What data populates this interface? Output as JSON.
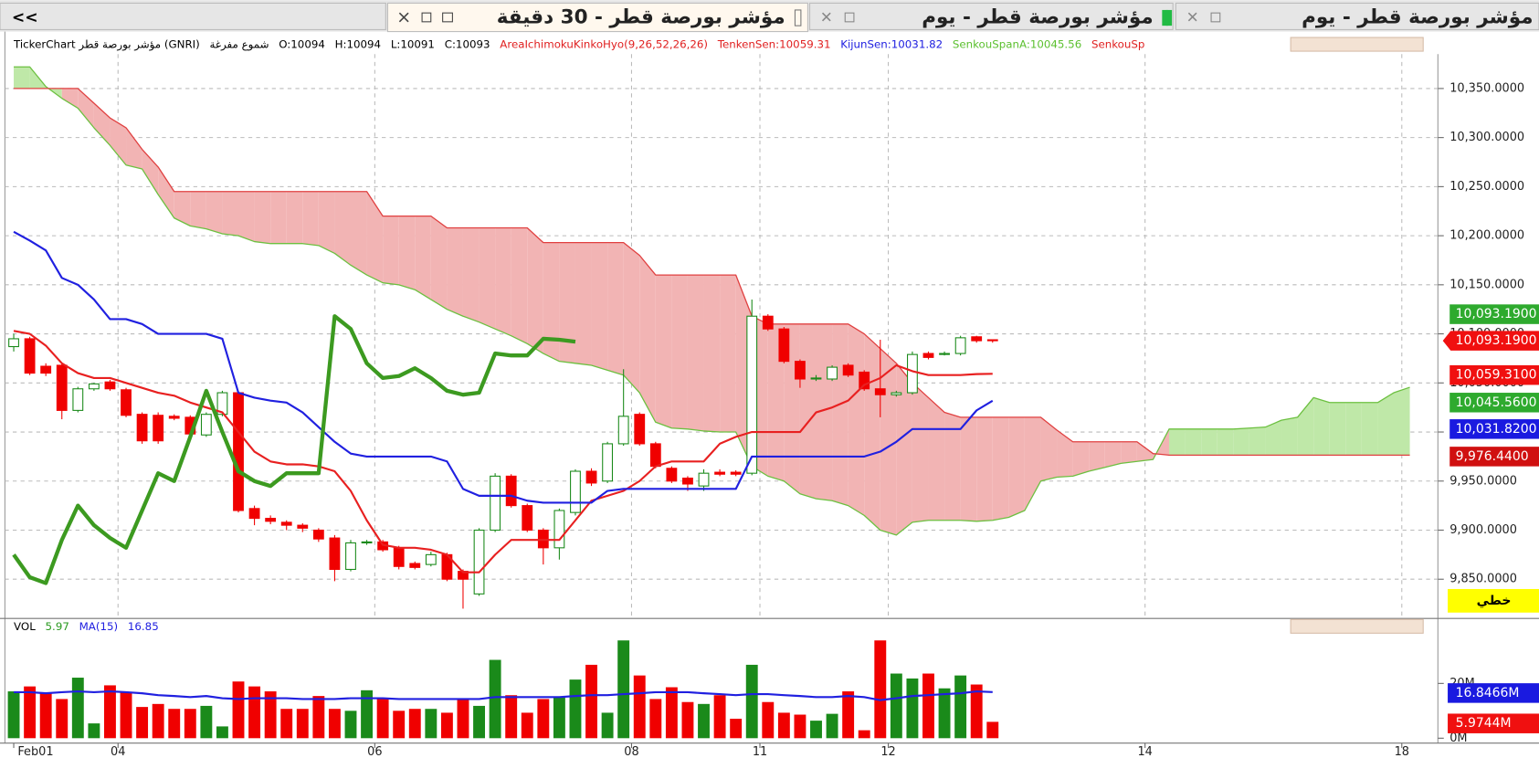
{
  "tabs": [
    "<<",
    "مؤشر بورصة قطر - 30 دقيقة",
    "مؤشر بورصة قطر - يوم",
    "مؤشر بورصة قطر - يوم"
  ],
  "chart_data": {
    "type": "candlestick",
    "info": [
      {
        "text": "TickerChart مؤشر بورصة قطر (GNRI)",
        "color": "#000000"
      },
      {
        "text": "شموع مفرغة",
        "color": "#000000"
      },
      {
        "text": "O:10094",
        "color": "#000000"
      },
      {
        "text": "H:10094",
        "color": "#000000"
      },
      {
        "text": "L:10091",
        "color": "#000000"
      },
      {
        "text": "C:10093",
        "color": "#000000"
      },
      {
        "text": "AreaIchimokuKinkoHyo(9,26,52,26,26)",
        "color": "#e02020"
      },
      {
        "text": "TenkenSen:10059.31",
        "color": "#e02020"
      },
      {
        "text": "KijunSen:10031.82",
        "color": "#2020e0"
      },
      {
        "text": "SenkouSpanA:10045.56",
        "color": "#5cc030"
      },
      {
        "text": "SenkouSp",
        "color": "#e02020"
      }
    ],
    "mode_label": "خطي",
    "xlim": [
      -0.55,
      88.75
    ],
    "xticks": [
      {
        "value": 0,
        "label": "Feb01"
      },
      {
        "value": 6.5,
        "label": "04"
      },
      {
        "value": 22.5,
        "label": "06"
      },
      {
        "value": 38.5,
        "label": "08"
      },
      {
        "value": 46.5,
        "label": "11"
      },
      {
        "value": 54.5,
        "label": "12"
      },
      {
        "value": 70.5,
        "label": "14"
      },
      {
        "value": 86.5,
        "label": "18"
      }
    ],
    "ylim": [
      9812,
      10385
    ],
    "yticks": [
      {
        "value": 9850,
        "label": "9,850.0000"
      },
      {
        "value": 9900,
        "label": "9,900.0000"
      },
      {
        "value": 9950,
        "label": "9,950.0000"
      },
      {
        "value": 10000,
        "label": "10,000.0000"
      },
      {
        "value": 10050,
        "label": "10,050.0000"
      },
      {
        "value": 10100,
        "label": "10,100.0000"
      },
      {
        "value": 10150,
        "label": "10,150.0000"
      },
      {
        "value": 10200,
        "label": "10,200.0000"
      },
      {
        "value": 10250,
        "label": "10,250.0000"
      },
      {
        "value": 10300,
        "label": "10,300.0000"
      },
      {
        "value": 10350,
        "label": "10,350.0000"
      }
    ],
    "grid": true,
    "up_color": "#1a8a1a",
    "down_color": "#f00000",
    "candles": {
      "open": [
        10087,
        10095,
        10067,
        10068,
        10022,
        10044,
        10051,
        10043,
        10018,
        10017,
        10016,
        10015,
        9997,
        10018,
        10040,
        9922,
        9912,
        9908,
        9905,
        9900,
        9892,
        9860,
        9887,
        9888,
        9882,
        9866,
        9865,
        9875,
        9858,
        9835,
        9900,
        9955,
        9925,
        9900,
        9882,
        9918,
        9960,
        9950,
        9988,
        10018,
        9988,
        9963,
        9953,
        9945,
        9959,
        9959,
        9958,
        10118,
        10105,
        10072,
        10054,
        10054,
        10068,
        10061,
        10044,
        10038,
        10040,
        10080,
        10079,
        10080,
        10097,
        10094
      ],
      "high": [
        10100,
        10097,
        10070,
        10070,
        10046,
        10050,
        10053,
        10045,
        10020,
        10020,
        10018,
        10017,
        10020,
        10042,
        10042,
        9925,
        9915,
        9910,
        9907,
        9902,
        9895,
        9890,
        9890,
        9890,
        9884,
        9868,
        9878,
        9877,
        9860,
        9902,
        9958,
        9957,
        9927,
        9902,
        9922,
        9962,
        9963,
        9990,
        10064,
        10020,
        9990,
        9965,
        9955,
        9962,
        9962,
        9961,
        10135,
        10120,
        10107,
        10074,
        10058,
        10068,
        10070,
        10063,
        10094,
        10042,
        10082,
        10082,
        10082,
        10098,
        10098,
        10094
      ],
      "low": [
        10082,
        10058,
        10057,
        10013,
        10020,
        10042,
        10042,
        10015,
        9988,
        9988,
        10012,
        9996,
        9995,
        10016,
        9918,
        9905,
        9906,
        9900,
        9898,
        9888,
        9848,
        9858,
        9885,
        9878,
        9860,
        9860,
        9863,
        9848,
        9820,
        9833,
        9898,
        9923,
        9898,
        9865,
        9870,
        9915,
        9945,
        9948,
        9986,
        9986,
        9963,
        9948,
        9940,
        9940,
        9955,
        9955,
        9956,
        10103,
        10070,
        10045,
        10052,
        10052,
        10056,
        10042,
        10015,
        10036,
        10038,
        10074,
        10078,
        10078,
        10091,
        10091
      ],
      "close": [
        10095,
        10060,
        10060,
        10022,
        10044,
        10049,
        10044,
        10017,
        9991,
        9991,
        10014,
        9998,
        10018,
        10040,
        9920,
        9912,
        9909,
        9905,
        9902,
        9891,
        9860,
        9887,
        9888,
        9880,
        9863,
        9862,
        9875,
        9850,
        9850,
        9900,
        9955,
        9925,
        9900,
        9882,
        9920,
        9960,
        9948,
        9988,
        10016,
        9988,
        9965,
        9950,
        9947,
        9958,
        9957,
        9957,
        10118,
        10105,
        10072,
        10054,
        10055,
        10066,
        10058,
        10044,
        10038,
        10040,
        10079,
        10076,
        10080,
        10096,
        10093,
        10093
      ]
    },
    "cloud": {
      "bull_color": "#bfe8a8",
      "bear_color": "#f2b4b4",
      "span_a": {
        "color": "#6cc040",
        "values": [
          10372,
          10372,
          10352,
          10340,
          10330,
          10310,
          10292,
          10272,
          10268,
          10242,
          10218,
          10210,
          10207,
          10202,
          10200,
          10194,
          10192,
          10192,
          10192,
          10190,
          10182,
          10170,
          10160,
          10152,
          10150,
          10145,
          10135,
          10125,
          10118,
          10112,
          10105,
          10098,
          10090,
          10080,
          10072,
          10070,
          10068,
          10063,
          10058,
          10040,
          10010,
          10004,
          10003,
          10001,
          10000,
          10000,
          9965,
          9955,
          9950,
          9937,
          9932,
          9930,
          9925,
          9915,
          9900,
          9895,
          9908,
          9910,
          9910,
          9910,
          9909,
          9910,
          9913,
          9920,
          9950,
          9954,
          9955,
          9960,
          9964,
          9968,
          9970,
          9972,
          10003,
          10003,
          10003,
          10003,
          10003,
          10004,
          10005,
          10012,
          10015,
          10035,
          10030,
          10030,
          10030,
          10030,
          10040,
          10045.56
        ]
      },
      "span_b": {
        "color": "#e04040",
        "values": [
          10350,
          10350,
          10350,
          10350,
          10350,
          10335,
          10320,
          10310,
          10288,
          10270,
          10245,
          10245,
          10245,
          10245,
          10245,
          10245,
          10245,
          10245,
          10245,
          10245,
          10245,
          10245,
          10245,
          10220,
          10220,
          10220,
          10220,
          10208,
          10208,
          10208,
          10208,
          10208,
          10208,
          10193,
          10193,
          10193,
          10193,
          10193,
          10193,
          10180,
          10160,
          10160,
          10160,
          10160,
          10160,
          10160,
          10118,
          10110,
          10110,
          10110,
          10110,
          10110,
          10110,
          10100,
          10085,
          10070,
          10050,
          10035,
          10020,
          10015,
          10015,
          10015,
          10015,
          10015,
          10015,
          10002,
          9990,
          9990,
          9990,
          9990,
          9990,
          9978,
          9976.44,
          9976.44,
          9976.44,
          9976.44,
          9976.44,
          9976.44,
          9976.44,
          9976.44,
          9976.44,
          9976.44,
          9976.44,
          9976.44,
          9976.44,
          9976.44,
          9976.44,
          9976.44
        ]
      }
    },
    "lines": [
      {
        "color": "#e82020",
        "width": 2,
        "values": [
          10103,
          10100,
          10088,
          10070,
          10060,
          10055,
          10055,
          10050,
          10045,
          10040,
          10037,
          10030,
          10025,
          10020,
          10000,
          9980,
          9970,
          9967,
          9967,
          9965,
          9960,
          9940,
          9910,
          9885,
          9882,
          9882,
          9880,
          9875,
          9857,
          9857,
          9875,
          9890,
          9890,
          9890,
          9890,
          9910,
          9930,
          9935,
          9940,
          9950,
          9965,
          9970,
          9970,
          9970,
          9988,
          9995,
          10000,
          10000,
          10000,
          10000,
          10020,
          10025,
          10032,
          10048,
          10055,
          10068,
          10062,
          10058,
          10058,
          10058,
          10059,
          10059.31
        ]
      },
      {
        "color": "#2020e0",
        "width": 2,
        "values": [
          10204,
          10195,
          10185,
          10157,
          10150,
          10135,
          10115,
          10115,
          10110,
          10100,
          10100,
          10100,
          10100,
          10095,
          10040,
          10035,
          10032,
          10030,
          10020,
          10005,
          9990,
          9978,
          9975,
          9975,
          9975,
          9975,
          9975,
          9970,
          9942,
          9935,
          9935,
          9935,
          9930,
          9928,
          9928,
          9928,
          9928,
          9940,
          9942,
          9942,
          9942,
          9942,
          9942,
          9942,
          9942,
          9942,
          9975,
          9975,
          9975,
          9975,
          9975,
          9975,
          9975,
          9975,
          9980,
          9990,
          10003,
          10003,
          10003,
          10003,
          10022,
          10031.82
        ]
      },
      {
        "color": "#3c9a20",
        "width": 4,
        "values": [
          9875,
          9852,
          9846,
          9890,
          9925,
          9905,
          9892,
          9882,
          9920,
          9958,
          9950,
          9995,
          10042,
          10000,
          9960,
          9950,
          9945,
          9958,
          9958,
          9958,
          10118,
          10105,
          10070,
          10055,
          10057,
          10065,
          10055,
          10042,
          10038,
          10040,
          10080,
          10078,
          10078,
          10095,
          10094,
          10092
        ]
      }
    ],
    "price_labels": [
      {
        "value": 10093.19,
        "label": "10,093.1900",
        "color": "#2eaa2e"
      },
      {
        "value": 10093.19,
        "label": "10,093.1900",
        "color": "#f01010",
        "pointer": true
      },
      {
        "value": 10059.31,
        "label": "10,059.3100",
        "color": "#f01010"
      },
      {
        "value": 10045.56,
        "label": "10,045.5600",
        "color": "#2eaa2e"
      },
      {
        "value": 10031.82,
        "label": "10,031.8200",
        "color": "#1a1ae0"
      },
      {
        "value": 9976.44,
        "label": "9,976.4400",
        "color": "#d01010"
      }
    ],
    "volume": {
      "info": [
        {
          "text": "VOL",
          "color": "#000000"
        },
        {
          "text": "5.97",
          "color": "#2a9a20"
        },
        {
          "text": "MA(15)",
          "color": "#2020e0"
        },
        {
          "text": "16.85",
          "color": "#2020e0"
        }
      ],
      "ylim": [
        0,
        43
      ],
      "yticks": [
        {
          "value": 0,
          "label": "0M"
        },
        {
          "value": 20,
          "label": "20M"
        }
      ],
      "values": [
        17.1,
        18.9,
        16.4,
        14.3,
        22.1,
        5.4,
        19.3,
        16.8,
        11.4,
        12.5,
        10.7,
        10.7,
        11.8,
        4.3,
        20.7,
        18.9,
        17.1,
        10.7,
        10.7,
        15.4,
        10.7,
        10.0,
        17.5,
        14.3,
        10.0,
        10.7,
        10.7,
        9.3,
        14.3,
        11.8,
        28.6,
        15.7,
        9.3,
        14.3,
        15.0,
        21.4,
        26.8,
        9.3,
        35.7,
        22.9,
        14.3,
        18.6,
        13.2,
        12.5,
        15.7,
        7.1,
        26.8,
        13.2,
        9.3,
        8.6,
        6.4,
        8.9,
        17.1,
        2.9,
        35.7,
        23.6,
        21.8,
        23.6,
        18.2,
        22.9,
        19.6,
        5.97
      ],
      "ma": {
        "color": "#2020e0",
        "values": [
          16.8,
          16.8,
          16.4,
          16.8,
          17.1,
          16.8,
          17.1,
          16.8,
          16.4,
          15.7,
          15.4,
          15.0,
          15.4,
          14.6,
          14.3,
          14.6,
          14.6,
          14.6,
          14.3,
          14.3,
          14.3,
          14.6,
          14.6,
          14.6,
          14.3,
          14.3,
          14.3,
          14.3,
          14.3,
          14.3,
          15.0,
          15.0,
          15.0,
          15.0,
          15.0,
          15.4,
          15.7,
          15.7,
          16.1,
          16.4,
          16.8,
          16.8,
          16.8,
          16.4,
          16.1,
          15.7,
          16.1,
          16.1,
          15.7,
          15.4,
          15.0,
          15.0,
          15.4,
          15.0,
          13.9,
          14.6,
          15.4,
          15.7,
          16.1,
          16.4,
          17.1,
          16.85
        ]
      },
      "labels": [
        {
          "value": 16.8466,
          "label": "16.8466M",
          "color": "#1a1ae0"
        },
        {
          "value": 5.9744,
          "label": "5.9744M",
          "color": "#f01010"
        }
      ]
    }
  }
}
